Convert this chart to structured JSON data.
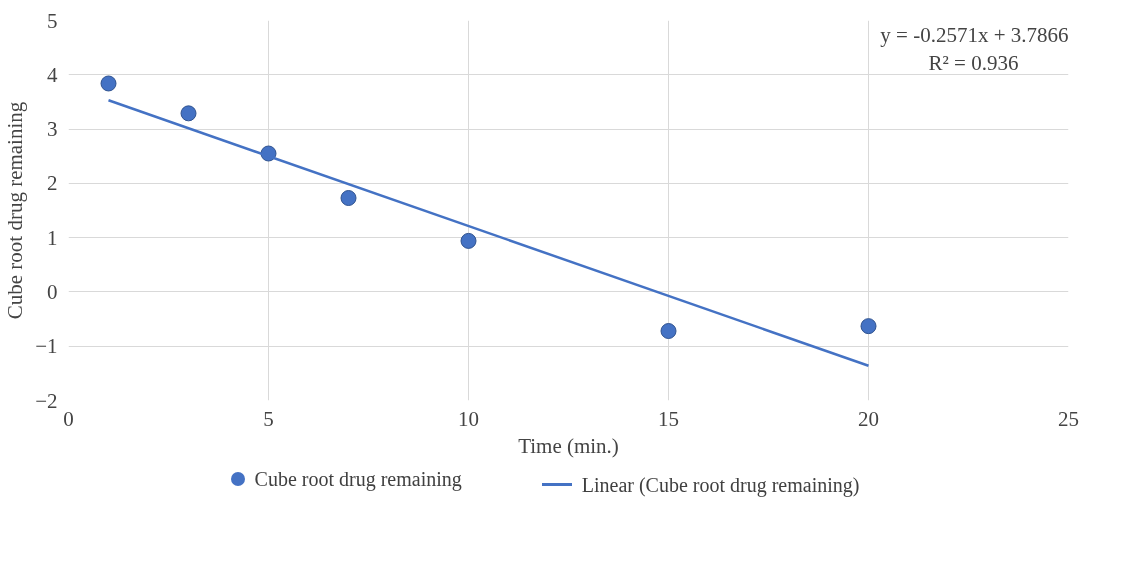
{
  "chart_data": {
    "type": "scatter",
    "xlabel": "Time (min.)",
    "ylabel": "Cube root drug remaining",
    "xlim": [
      0,
      25
    ],
    "xticks": [
      0,
      5,
      10,
      15,
      20,
      25
    ],
    "ylim": [
      -2,
      5
    ],
    "yticks": [
      -2,
      -1,
      0,
      1,
      2,
      3,
      4,
      5
    ],
    "grid": true,
    "legend": "bottom",
    "marker": "circle",
    "annotations": [
      "y = -0.2571x + 3.7866",
      "R² = 0.936"
    ],
    "series": [
      {
        "name": "Cube root drug remaining",
        "color": "#4472c4",
        "x": [
          1,
          3,
          5,
          7,
          10,
          15,
          20
        ],
        "values": [
          3.84,
          3.29,
          2.55,
          1.73,
          0.94,
          -0.72,
          -0.63
        ]
      },
      {
        "name": "Linear (Cube root drug remaining)",
        "type": "line",
        "marker": "none",
        "color": "#4472c4",
        "line_style": "solid",
        "x": [
          1,
          20
        ],
        "values": [
          3.53,
          -1.36
        ]
      }
    ]
  }
}
